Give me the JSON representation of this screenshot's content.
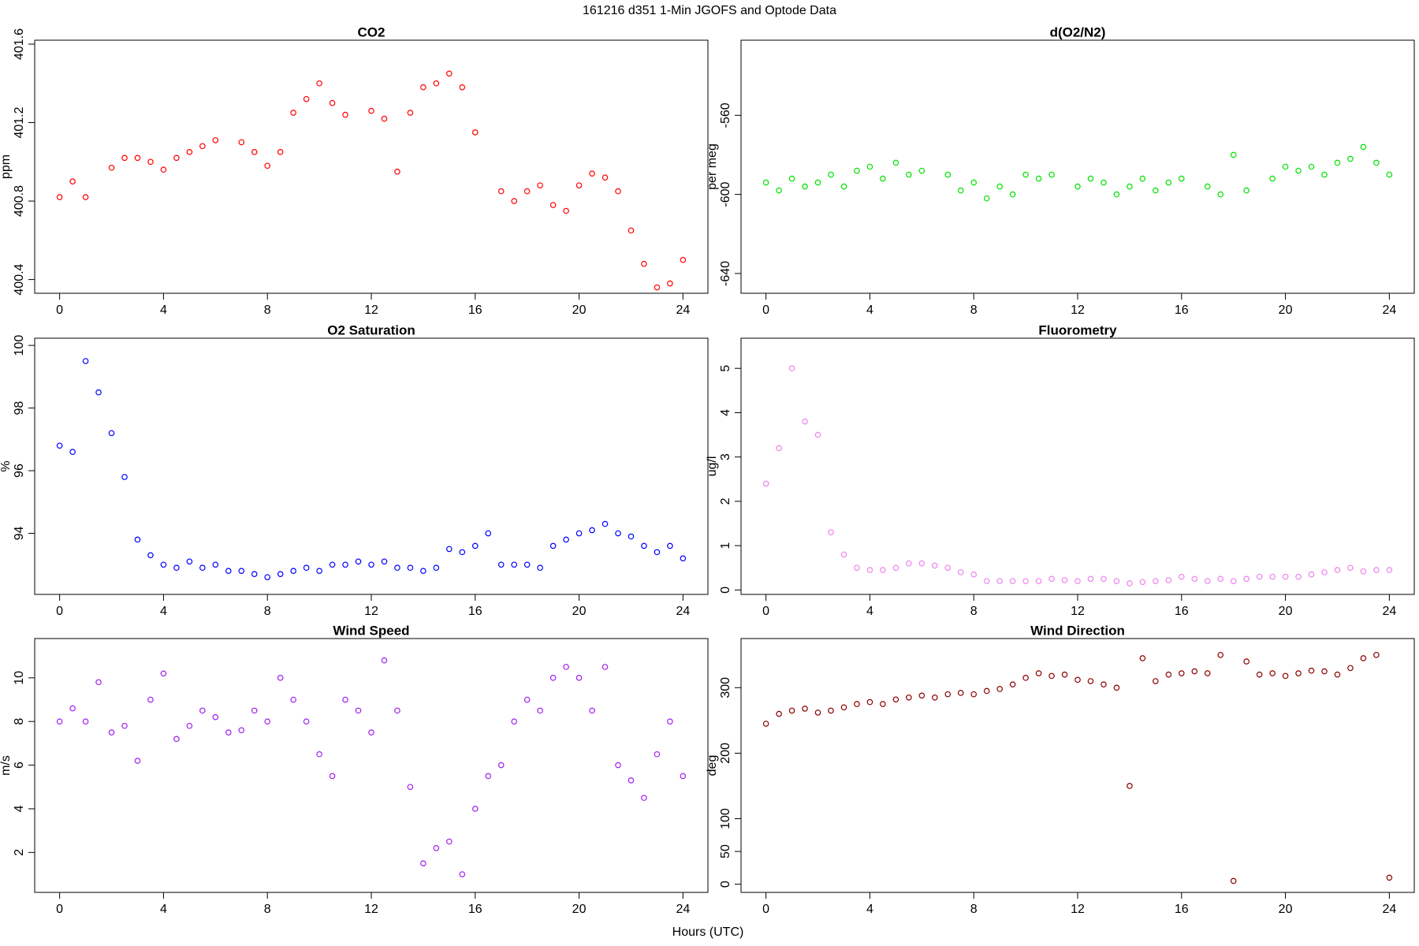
{
  "title": "161216   d351   1-Min  JGOFS and Optode Data",
  "xlabel": "Hours (UTC)",
  "chart_data": [
    {
      "type": "scatter",
      "title": "CO2",
      "ylabel": "ppm",
      "color": "#ff0000",
      "x": [
        0,
        0.5,
        1,
        1.5,
        2,
        2.5,
        3,
        3.5,
        4,
        4.5,
        5,
        5.5,
        6,
        6.5,
        7,
        7.5,
        8,
        8.5,
        9,
        9.5,
        10,
        10.5,
        11,
        11.5,
        12,
        12.5,
        13,
        13.5,
        14,
        14.5,
        15,
        15.5,
        16,
        16.5,
        17,
        17.5,
        18,
        18.5,
        19,
        19.5,
        20,
        20.5,
        21,
        21.5,
        22,
        22.5,
        23,
        23.5,
        24
      ],
      "values": [
        400.82,
        400.9,
        400.82,
        null,
        400.97,
        401.02,
        401.02,
        401.0,
        400.96,
        401.02,
        401.05,
        401.08,
        401.11,
        null,
        401.1,
        401.05,
        400.98,
        401.05,
        401.25,
        401.32,
        401.4,
        401.3,
        401.24,
        null,
        401.26,
        401.22,
        400.95,
        401.25,
        401.38,
        401.4,
        401.45,
        401.38,
        401.15,
        null,
        400.85,
        400.8,
        400.85,
        400.88,
        400.78,
        400.75,
        400.88,
        400.94,
        400.92,
        400.85,
        400.65,
        400.48,
        400.36,
        400.38,
        400.5
      ],
      "xlim": [
        -0.96,
        24.96
      ],
      "xticks": [
        0,
        4,
        8,
        12,
        16,
        20,
        24
      ],
      "ylim": [
        400.33,
        401.62
      ],
      "yticks": [
        400.4,
        400.8,
        401.2,
        401.6
      ]
    },
    {
      "type": "scatter",
      "title": "d(O2/N2)",
      "ylabel": "per meg",
      "color": "#00e000",
      "x": [
        0,
        0.5,
        1,
        1.5,
        2,
        2.5,
        3,
        3.5,
        4,
        4.5,
        5,
        5.5,
        6,
        6.5,
        7,
        7.5,
        8,
        8.5,
        9,
        9.5,
        10,
        10.5,
        11,
        11.5,
        12,
        12.5,
        13,
        13.5,
        14,
        14.5,
        15,
        15.5,
        16,
        16.5,
        17,
        17.5,
        18,
        18.5,
        19,
        19.5,
        20,
        20.5,
        21,
        21.5,
        22,
        22.5,
        23,
        23.5,
        24
      ],
      "values": [
        -594,
        -598,
        -592,
        -596,
        -594,
        -590,
        -596,
        -588,
        -586,
        -592,
        -584,
        -590,
        -588,
        null,
        -590,
        -598,
        -594,
        -602,
        -596,
        -600,
        -590,
        -592,
        -590,
        null,
        -596,
        -592,
        -594,
        -600,
        -596,
        -592,
        -598,
        -594,
        -592,
        null,
        -596,
        -600,
        -580,
        -598,
        null,
        -592,
        -586,
        -588,
        -586,
        -590,
        -584,
        -582,
        -576,
        -584,
        -590
      ],
      "xlim": [
        -0.96,
        24.96
      ],
      "xticks": [
        0,
        4,
        8,
        12,
        16,
        20,
        24
      ],
      "ylim": [
        -650,
        -522
      ],
      "yticks": [
        -640,
        -600,
        -560
      ]
    },
    {
      "type": "scatter",
      "title": "O2 Saturation",
      "ylabel": "%",
      "color": "#0000ff",
      "x": [
        0,
        0.5,
        1,
        1.5,
        2,
        2.5,
        3,
        3.5,
        4,
        4.5,
        5,
        5.5,
        6,
        6.5,
        7,
        7.5,
        8,
        8.5,
        9,
        9.5,
        10,
        10.5,
        11,
        11.5,
        12,
        12.5,
        13,
        13.5,
        14,
        14.5,
        15,
        15.5,
        16,
        16.5,
        17,
        17.5,
        18,
        18.5,
        19,
        19.5,
        20,
        20.5,
        21,
        21.5,
        22,
        22.5,
        23,
        23.5,
        24
      ],
      "values": [
        96.8,
        96.6,
        99.5,
        98.5,
        97.2,
        95.8,
        93.8,
        93.3,
        93.0,
        92.9,
        93.1,
        92.9,
        93.0,
        92.8,
        92.8,
        92.7,
        92.6,
        92.7,
        92.8,
        92.9,
        92.8,
        93.0,
        93.0,
        93.1,
        93.0,
        93.1,
        92.9,
        92.9,
        92.8,
        92.9,
        93.5,
        93.4,
        93.6,
        94.0,
        93.0,
        93.0,
        93.0,
        92.9,
        93.6,
        93.8,
        94.0,
        94.1,
        94.3,
        94.0,
        93.9,
        93.6,
        93.4,
        93.6,
        93.2
      ],
      "xlim": [
        -0.96,
        24.96
      ],
      "xticks": [
        0,
        4,
        8,
        12,
        16,
        20,
        24
      ],
      "ylim": [
        92.05,
        100.23
      ],
      "yticks": [
        94,
        96,
        98,
        100
      ]
    },
    {
      "type": "scatter",
      "title": "Fluorometry",
      "ylabel": "ug/l",
      "color": "#ee82ee",
      "x": [
        0,
        0.5,
        1,
        1.5,
        2,
        2.5,
        3,
        3.5,
        4,
        4.5,
        5,
        5.5,
        6,
        6.5,
        7,
        7.5,
        8,
        8.5,
        9,
        9.5,
        10,
        10.5,
        11,
        11.5,
        12,
        12.5,
        13,
        13.5,
        14,
        14.5,
        15,
        15.5,
        16,
        16.5,
        17,
        17.5,
        18,
        18.5,
        19,
        19.5,
        20,
        20.5,
        21,
        21.5,
        22,
        22.5,
        23,
        23.5,
        24
      ],
      "values": [
        2.4,
        3.2,
        5.0,
        3.8,
        3.5,
        1.3,
        0.8,
        0.5,
        0.45,
        0.45,
        0.5,
        0.6,
        0.6,
        0.55,
        0.5,
        0.4,
        0.35,
        0.2,
        0.2,
        0.2,
        0.2,
        0.2,
        0.25,
        0.22,
        0.2,
        0.25,
        0.25,
        0.2,
        0.15,
        0.18,
        0.2,
        0.22,
        0.3,
        0.25,
        0.2,
        0.25,
        0.2,
        0.25,
        0.3,
        0.3,
        0.3,
        0.3,
        0.35,
        0.4,
        0.45,
        0.5,
        0.42,
        0.45,
        0.45
      ],
      "xlim": [
        -0.96,
        24.96
      ],
      "xticks": [
        0,
        4,
        8,
        12,
        16,
        20,
        24
      ],
      "ylim": [
        -0.1,
        5.68
      ],
      "yticks": [
        0,
        1,
        2,
        3,
        4,
        5
      ]
    },
    {
      "type": "scatter",
      "title": "Wind Speed",
      "ylabel": "m/s",
      "color": "#a020f0",
      "x": [
        0,
        0.5,
        1,
        1.5,
        2,
        2.5,
        3,
        3.5,
        4,
        4.5,
        5,
        5.5,
        6,
        6.5,
        7,
        7.5,
        8,
        8.5,
        9,
        9.5,
        10,
        10.5,
        11,
        11.5,
        12,
        12.5,
        13,
        13.5,
        14,
        14.5,
        15,
        15.5,
        16,
        16.5,
        17,
        17.5,
        18,
        18.5,
        19,
        19.5,
        20,
        20.5,
        21,
        21.5,
        22,
        22.5,
        23,
        23.5,
        24
      ],
      "values": [
        8.0,
        8.6,
        8.0,
        9.8,
        7.5,
        7.8,
        6.2,
        9.0,
        10.2,
        7.2,
        7.8,
        8.5,
        8.2,
        7.5,
        7.6,
        8.5,
        8.0,
        10.0,
        9.0,
        8.0,
        6.5,
        5.5,
        9.0,
        8.5,
        7.5,
        10.8,
        8.5,
        5.0,
        1.5,
        2.2,
        2.5,
        1.0,
        4.0,
        5.5,
        6.0,
        8.0,
        9.0,
        8.5,
        10.0,
        10.5,
        10.0,
        8.5,
        10.5,
        6.0,
        5.3,
        4.5,
        6.5,
        8.0,
        5.5
      ],
      "xlim": [
        -0.96,
        24.96
      ],
      "xticks": [
        0,
        4,
        8,
        12,
        16,
        20,
        24
      ],
      "ylim": [
        0.17,
        11.8
      ],
      "yticks": [
        2,
        4,
        6,
        8,
        10
      ]
    },
    {
      "type": "scatter",
      "title": "Wind Direction",
      "ylabel": "deg",
      "color": "#8b0000",
      "x": [
        0,
        0.5,
        1,
        1.5,
        2,
        2.5,
        3,
        3.5,
        4,
        4.5,
        5,
        5.5,
        6,
        6.5,
        7,
        7.5,
        8,
        8.5,
        9,
        9.5,
        10,
        10.5,
        11,
        11.5,
        12,
        12.5,
        13,
        13.5,
        14,
        14.5,
        15,
        15.5,
        16,
        16.5,
        17,
        17.5,
        18,
        18.5,
        19,
        19.5,
        20,
        20.5,
        21,
        21.5,
        22,
        22.5,
        23,
        23.5,
        24
      ],
      "values": [
        245,
        260,
        265,
        268,
        262,
        265,
        270,
        275,
        278,
        275,
        282,
        285,
        288,
        285,
        290,
        292,
        290,
        295,
        298,
        305,
        315,
        322,
        318,
        320,
        312,
        310,
        305,
        300,
        150,
        345,
        310,
        320,
        322,
        325,
        322,
        350,
        5,
        340,
        320,
        322,
        318,
        322,
        326,
        325,
        320,
        330,
        345,
        350,
        10
      ],
      "xlim": [
        -0.96,
        24.96
      ],
      "xticks": [
        0,
        4,
        8,
        12,
        16,
        20,
        24
      ],
      "ylim": [
        -12.5,
        375
      ],
      "yticks": [
        0,
        50,
        100,
        200,
        300
      ]
    }
  ]
}
